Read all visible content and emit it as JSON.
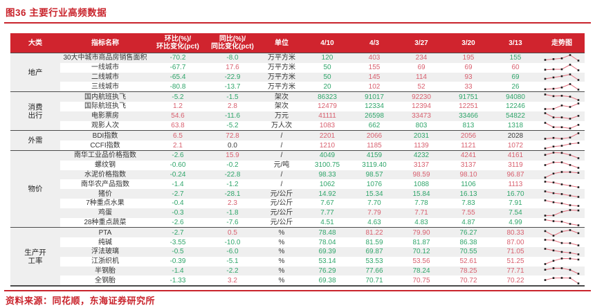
{
  "title": "图36  主要行业高频数据",
  "source": "资料来源：同花顺，东海证券研究所",
  "colors": {
    "header_bg": "#d0242e",
    "title_red": "#c9242c",
    "value_up_red": "#d85f6e",
    "value_down_green": "#2fa56a",
    "neutral_dark": "#3a3a3a",
    "stripe_gray": "#efefef",
    "sparkline_line": "#e4717f",
    "sparkline_marker": "#1a1a1a"
  },
  "table": {
    "columns": [
      "大类",
      "指标名称",
      "环比(%)/\n环比变化(pct)",
      "同比(%)/\n同比变化(pct)",
      "单位",
      "4/10",
      "4/3",
      "3/27",
      "3/20",
      "3/13",
      "走势图"
    ],
    "sections": [
      {
        "category": "地产",
        "rows": [
          {
            "name": "30大中城市商品房销售面积",
            "mom": "-70.2",
            "mom_c": "g",
            "yoy": "-8.0",
            "yoy_c": "g",
            "unit": "万平方米",
            "values": [
              "120",
              "403",
              "234",
              "195",
              "155"
            ],
            "vc": [
              "g",
              "r",
              "r",
              "r",
              "g"
            ]
          },
          {
            "name": "一线城市",
            "mom": "-67.7",
            "mom_c": "g",
            "yoy": "17.6",
            "yoy_c": "r",
            "unit": "万平方米",
            "values": [
              "50",
              "155",
              "69",
              "69",
              "60"
            ],
            "vc": [
              "g",
              "r",
              "r",
              "r",
              "r"
            ]
          },
          {
            "name": "二线城市",
            "mom": "-65.4",
            "mom_c": "g",
            "yoy": "-22.9",
            "yoy_c": "g",
            "unit": "万平方米",
            "values": [
              "50",
              "145",
              "114",
              "93",
              "69"
            ],
            "vc": [
              "g",
              "r",
              "r",
              "r",
              "g"
            ]
          },
          {
            "name": "三线城市",
            "mom": "-80.8",
            "mom_c": "g",
            "yoy": "-13.7",
            "yoy_c": "g",
            "unit": "万平方米",
            "values": [
              "20",
              "102",
              "52",
              "33",
              "26"
            ],
            "vc": [
              "g",
              "r",
              "r",
              "r",
              "g"
            ]
          }
        ]
      },
      {
        "category": "消费\n出行",
        "rows": [
          {
            "name": "国内航班执飞",
            "mom": "-5.2",
            "mom_c": "g",
            "yoy": "-1.5",
            "yoy_c": "g",
            "unit": "架次",
            "values": [
              "86323",
              "91017",
              "92230",
              "91751",
              "94080"
            ],
            "vc": [
              "g",
              "g",
              "r",
              "g",
              "g"
            ]
          },
          {
            "name": "国际航班执飞",
            "mom": "1.2",
            "mom_c": "r",
            "yoy": "2.8",
            "yoy_c": "r",
            "unit": "架次",
            "values": [
              "12479",
              "12334",
              "12394",
              "12251",
              "12246"
            ],
            "vc": [
              "r",
              "g",
              "r",
              "r",
              "g"
            ]
          },
          {
            "name": "电影票房",
            "mom": "54.6",
            "mom_c": "r",
            "yoy": "-11.6",
            "yoy_c": "g",
            "unit": "万元",
            "values": [
              "41111",
              "26598",
              "33473",
              "33466",
              "54822"
            ],
            "vc": [
              "r",
              "g",
              "r",
              "g",
              "g"
            ]
          },
          {
            "name": "观影人次",
            "mom": "63.8",
            "mom_c": "r",
            "yoy": "-5.2",
            "yoy_c": "g",
            "unit": "万人次",
            "values": [
              "1083",
              "662",
              "803",
              "813",
              "1318"
            ],
            "vc": [
              "r",
              "g",
              "g",
              "g",
              "g"
            ]
          }
        ]
      },
      {
        "category": "外需",
        "rows": [
          {
            "name": "BDI指数",
            "mom": "6.5",
            "mom_c": "r",
            "yoy": "72.8",
            "yoy_c": "r",
            "unit": "/",
            "values": [
              "2201",
              "2066",
              "2031",
              "2056",
              "2028"
            ],
            "vc": [
              "r",
              "r",
              "g",
              "r",
              "k"
            ]
          },
          {
            "name": "CCFI指数",
            "mom": "2.1",
            "mom_c": "r",
            "yoy": "0.0",
            "yoy_c": "k",
            "unit": "/",
            "values": [
              "1210",
              "1185",
              "1139",
              "1121",
              "1072"
            ],
            "vc": [
              "r",
              "r",
              "r",
              "r",
              "r"
            ]
          }
        ]
      },
      {
        "category": "物价",
        "rows": [
          {
            "name": "南华工业品价格指数",
            "mom": "-2.6",
            "mom_c": "g",
            "yoy": "15.9",
            "yoy_c": "r",
            "unit": "/",
            "values": [
              "4049",
              "4159",
              "4232",
              "4241",
              "4161"
            ],
            "vc": [
              "g",
              "g",
              "g",
              "r",
              "r"
            ]
          },
          {
            "name": "螺纹钢",
            "mom": "-0.60",
            "mom_c": "g",
            "yoy": "-0.2",
            "yoy_c": "g",
            "unit": "元/吨",
            "values": [
              "3100.75",
              "3119.40",
              "3137",
              "3137",
              "3119"
            ],
            "vc": [
              "g",
              "g",
              "r",
              "r",
              "r"
            ]
          },
          {
            "name": "水泥价格指数",
            "mom": "-0.24",
            "mom_c": "g",
            "yoy": "-22.8",
            "yoy_c": "g",
            "unit": "/",
            "values": [
              "98.33",
              "98.57",
              "98.59",
              "98.10",
              "96.87"
            ],
            "vc": [
              "g",
              "g",
              "r",
              "r",
              "r"
            ]
          },
          {
            "name": "南华农产品指数",
            "mom": "-1.4",
            "mom_c": "g",
            "yoy": "-1.2",
            "yoy_c": "g",
            "unit": "/",
            "values": [
              "1062",
              "1076",
              "1088",
              "1106",
              "1113"
            ],
            "vc": [
              "g",
              "g",
              "g",
              "g",
              "r"
            ]
          },
          {
            "name": "猪价",
            "mom": "-2.7",
            "mom_c": "g",
            "yoy": "-28.1",
            "yoy_c": "g",
            "unit": "元/公斤",
            "values": [
              "14.92",
              "15.34",
              "15.84",
              "16.13",
              "16.70"
            ],
            "vc": [
              "g",
              "g",
              "g",
              "g",
              "g"
            ]
          },
          {
            "name": "7种重点水果",
            "mom": "-0.4",
            "mom_c": "g",
            "yoy": "2.3",
            "yoy_c": "r",
            "unit": "元/公斤",
            "values": [
              "7.67",
              "7.70",
              "7.78",
              "7.83",
              "7.91"
            ],
            "vc": [
              "g",
              "g",
              "g",
              "g",
              "g"
            ]
          },
          {
            "name": "鸡蛋",
            "mom": "-0.3",
            "mom_c": "g",
            "yoy": "-1.8",
            "yoy_c": "g",
            "unit": "元/公斤",
            "values": [
              "7.77",
              "7.79",
              "7.71",
              "7.55",
              "7.54"
            ],
            "vc": [
              "g",
              "r",
              "r",
              "r",
              "g"
            ]
          },
          {
            "name": "28种重点蔬菜",
            "mom": "-2.6",
            "mom_c": "g",
            "yoy": "-7.6",
            "yoy_c": "g",
            "unit": "元/公斤",
            "values": [
              "4.51",
              "4.63",
              "4.83",
              "4.87",
              "4.99"
            ],
            "vc": [
              "g",
              "g",
              "g",
              "g",
              "g"
            ]
          }
        ]
      },
      {
        "category": "生产开\n工率",
        "rows": [
          {
            "name": "PTA",
            "mom": "-2.7",
            "mom_c": "g",
            "yoy": "0.5",
            "yoy_c": "r",
            "unit": "%",
            "values": [
              "78.48",
              "81.22",
              "79.90",
              "76.27",
              "80.33"
            ],
            "vc": [
              "g",
              "r",
              "r",
              "g",
              "r"
            ]
          },
          {
            "name": "纯碱",
            "mom": "-3.55",
            "mom_c": "g",
            "yoy": "-10.0",
            "yoy_c": "g",
            "unit": "%",
            "values": [
              "78.04",
              "81.59",
              "81.87",
              "86.38",
              "87.00"
            ],
            "vc": [
              "g",
              "g",
              "g",
              "g",
              "r"
            ]
          },
          {
            "name": "浮法玻璃",
            "mom": "-0.5",
            "mom_c": "g",
            "yoy": "-6.0",
            "yoy_c": "g",
            "unit": "%",
            "values": [
              "69.39",
              "69.87",
              "70.12",
              "70.55",
              "71.05"
            ],
            "vc": [
              "g",
              "g",
              "g",
              "g",
              "r"
            ]
          },
          {
            "name": "江浙织机",
            "mom": "-0.39",
            "mom_c": "g",
            "yoy": "-5.1",
            "yoy_c": "g",
            "unit": "%",
            "values": [
              "53.14",
              "53.53",
              "53.56",
              "52.61",
              "51.25"
            ],
            "vc": [
              "g",
              "g",
              "r",
              "r",
              "r"
            ]
          },
          {
            "name": "半钢胎",
            "mom": "-1.4",
            "mom_c": "g",
            "yoy": "-2.2",
            "yoy_c": "g",
            "unit": "%",
            "values": [
              "76.29",
              "77.66",
              "78.24",
              "78.25",
              "77.71"
            ],
            "vc": [
              "g",
              "g",
              "g",
              "r",
              "r"
            ]
          },
          {
            "name": "全钢胎",
            "mom": "-1.33",
            "mom_c": "g",
            "yoy": "3.2",
            "yoy_c": "r",
            "unit": "%",
            "values": [
              "69.38",
              "70.71",
              "70.75",
              "70.72",
              "70.22"
            ],
            "vc": [
              "g",
              "g",
              "r",
              "r",
              "r"
            ]
          }
        ]
      }
    ]
  }
}
